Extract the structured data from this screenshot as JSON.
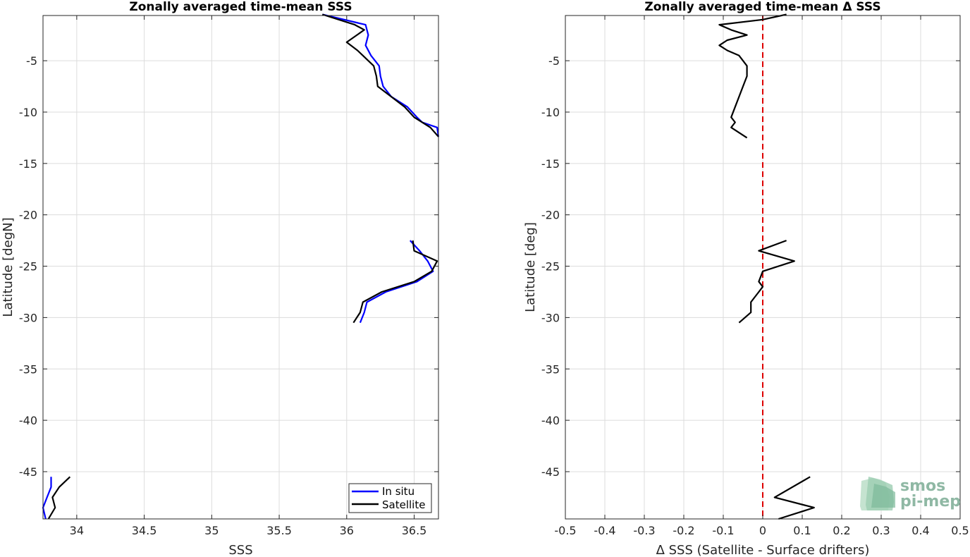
{
  "chart_data": [
    {
      "type": "line",
      "title": "Zonally averaged time-mean SSS",
      "xlabel": "SSS",
      "ylabel": "Latitude [degN]",
      "xlim": [
        33.75,
        36.68
      ],
      "ylim": [
        -49.6,
        -0.6
      ],
      "xticks": [
        34,
        34.5,
        35,
        35.5,
        36,
        36.5
      ],
      "xtick_labels": [
        "34",
        "34.5",
        "35",
        "35.5",
        "36",
        "36.5"
      ],
      "yticks": [
        -5,
        -10,
        -15,
        -20,
        -25,
        -30,
        -35,
        -40,
        -45
      ],
      "ytick_labels": [
        "-5",
        "-10",
        "-15",
        "-20",
        "-25",
        "-30",
        "-35",
        "-40",
        "-45"
      ],
      "grid": true,
      "legend": "bottom-right",
      "series": [
        {
          "name": "In situ",
          "color": "#0000ff",
          "segments": [
            [
              [
                35.82,
                -0.5
              ],
              [
                36.14,
                -1.5
              ],
              [
                36.16,
                -2.5
              ],
              [
                36.14,
                -3.5
              ],
              [
                36.18,
                -4.5
              ],
              [
                36.24,
                -5.5
              ],
              [
                36.25,
                -6.5
              ],
              [
                36.27,
                -7.5
              ],
              [
                36.33,
                -8.5
              ],
              [
                36.45,
                -9.5
              ],
              [
                36.52,
                -10.5
              ],
              [
                36.56,
                -11
              ],
              [
                36.67,
                -11.5
              ],
              [
                36.68,
                -12.4
              ]
            ],
            [
              [
                36.47,
                -22.5
              ],
              [
                36.54,
                -23.5
              ],
              [
                36.6,
                -24.5
              ],
              [
                36.64,
                -25.5
              ],
              [
                36.52,
                -26.5
              ],
              [
                36.29,
                -27.5
              ],
              [
                36.15,
                -28.5
              ],
              [
                36.13,
                -29.5
              ],
              [
                36.1,
                -30.5
              ]
            ],
            [
              [
                33.81,
                -45.5
              ],
              [
                33.81,
                -46.5
              ],
              [
                33.78,
                -47.5
              ],
              [
                33.75,
                -48.5
              ],
              [
                33.77,
                -49.6
              ]
            ]
          ]
        },
        {
          "name": "Satellite",
          "color": "#000000",
          "segments": [
            [
              [
                35.82,
                -0.5
              ],
              [
                36.06,
                -1.5
              ],
              [
                36.13,
                -2
              ],
              [
                36.0,
                -3.2
              ],
              [
                36.08,
                -4
              ],
              [
                36.12,
                -4.5
              ],
              [
                36.2,
                -5.5
              ],
              [
                36.22,
                -6.5
              ],
              [
                36.23,
                -7.5
              ],
              [
                36.33,
                -8.5
              ],
              [
                36.43,
                -9.5
              ],
              [
                36.5,
                -10.5
              ],
              [
                36.62,
                -11.5
              ],
              [
                36.68,
                -12.4
              ]
            ],
            [
              [
                36.49,
                -22.5
              ],
              [
                36.5,
                -23.5
              ],
              [
                36.67,
                -24.5
              ],
              [
                36.63,
                -25.5
              ],
              [
                36.5,
                -26.5
              ],
              [
                36.26,
                -27.5
              ],
              [
                36.12,
                -28.5
              ],
              [
                36.1,
                -29.5
              ],
              [
                36.05,
                -30.5
              ]
            ],
            [
              [
                33.95,
                -45.5
              ],
              [
                33.87,
                -46.5
              ],
              [
                33.82,
                -47.5
              ],
              [
                33.84,
                -48.5
              ],
              [
                33.79,
                -49.6
              ]
            ]
          ]
        }
      ]
    },
    {
      "type": "line",
      "title": "Zonally averaged time-mean Δ SSS",
      "xlabel": "Δ SSS (Satellite - Surface drifters)",
      "ylabel": "Latitude [deg]",
      "xlim": [
        -0.5,
        0.5
      ],
      "ylim": [
        -49.6,
        -0.6
      ],
      "xticks": [
        -0.5,
        -0.4,
        -0.3,
        -0.2,
        -0.1,
        0,
        0.1,
        0.2,
        0.3,
        0.4,
        0.5
      ],
      "xtick_labels": [
        "-0.5",
        "-0.4",
        "-0.3",
        "-0.2",
        "-0.1",
        "0",
        "0.1",
        "0.2",
        "0.3",
        "0.4",
        "0.5"
      ],
      "yticks": [
        -5,
        -10,
        -15,
        -20,
        -25,
        -30,
        -35,
        -40,
        -45
      ],
      "ytick_labels": [
        "-5",
        "-10",
        "-15",
        "-20",
        "-25",
        "-30",
        "-35",
        "-40",
        "-45"
      ],
      "grid": true,
      "reference_line": {
        "x": 0,
        "color": "#dd0000",
        "style": "dashed"
      },
      "series": [
        {
          "color": "#000000",
          "segments": [
            [
              [
                0.06,
                -0.5
              ],
              [
                0.0,
                -1
              ],
              [
                -0.11,
                -1.5
              ],
              [
                -0.08,
                -2
              ],
              [
                -0.04,
                -2.5
              ],
              [
                -0.09,
                -3
              ],
              [
                -0.11,
                -3.5
              ],
              [
                -0.09,
                -4
              ],
              [
                -0.06,
                -4.5
              ],
              [
                -0.04,
                -5.5
              ],
              [
                -0.04,
                -6.5
              ],
              [
                -0.05,
                -7.5
              ],
              [
                -0.06,
                -8.5
              ],
              [
                -0.07,
                -9.5
              ],
              [
                -0.08,
                -10.5
              ],
              [
                -0.07,
                -11
              ],
              [
                -0.08,
                -11.5
              ],
              [
                -0.04,
                -12.5
              ]
            ],
            [
              [
                0.06,
                -22.5
              ],
              [
                -0.01,
                -23.5
              ],
              [
                0.08,
                -24.5
              ],
              [
                0.0,
                -25.5
              ],
              [
                -0.01,
                -26.5
              ],
              [
                0.0,
                -27
              ],
              [
                -0.01,
                -27.5
              ],
              [
                -0.03,
                -28.5
              ],
              [
                -0.03,
                -29.5
              ],
              [
                -0.06,
                -30.5
              ]
            ],
            [
              [
                0.12,
                -45.5
              ],
              [
                0.03,
                -47.5
              ],
              [
                0.13,
                -48.5
              ],
              [
                0.04,
                -49.6
              ]
            ]
          ]
        }
      ]
    }
  ],
  "legend": {
    "items": [
      {
        "label": "In situ",
        "color": "#0000ff"
      },
      {
        "label": "Satellite",
        "color": "#000000"
      }
    ]
  },
  "logo": {
    "line1": "smos",
    "line2": "pi-mep"
  }
}
